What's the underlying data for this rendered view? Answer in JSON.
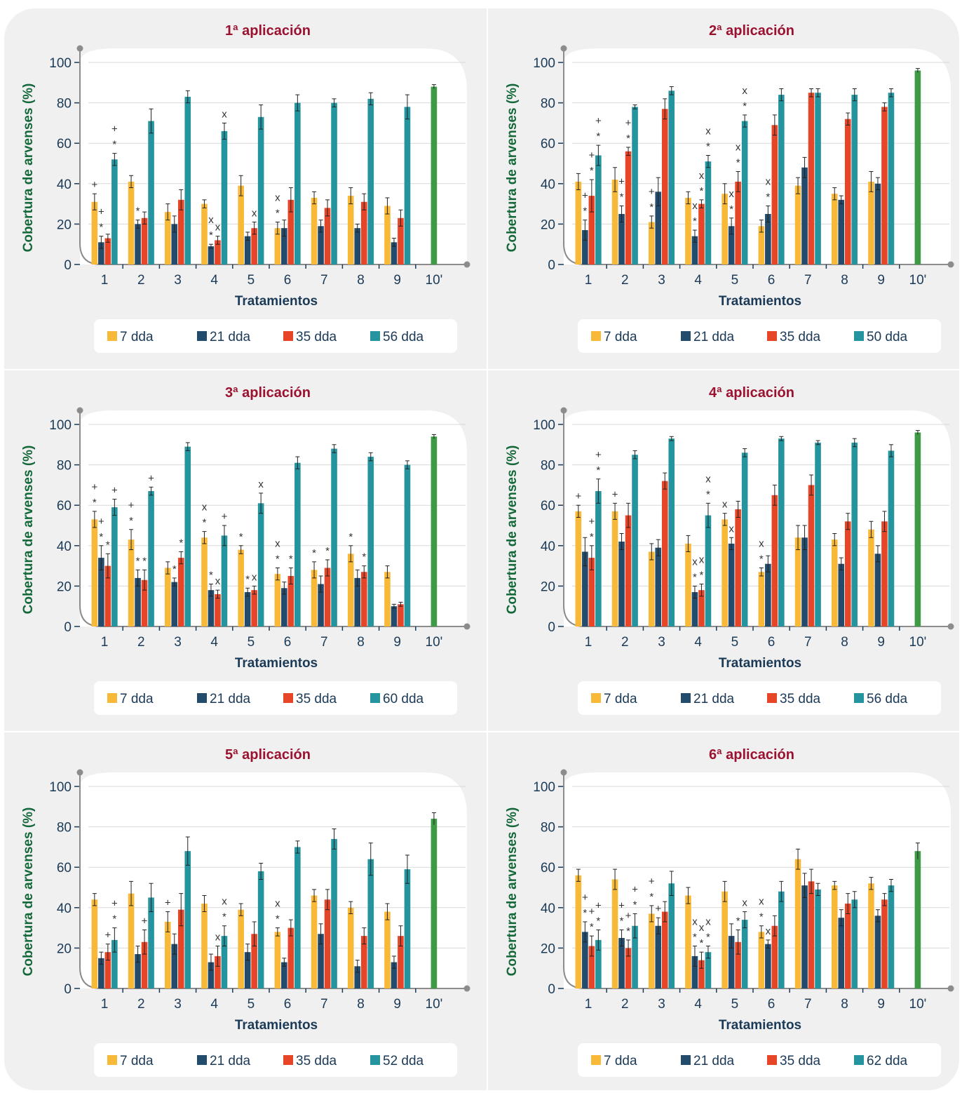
{
  "y_axis_label": "Cobertura de arvenses (%)",
  "x_axis_label": "Tratamientos",
  "colors": {
    "7 dda": "#f9b938",
    "21 dda": "#234b6c",
    "35 dda": "#e64528",
    "late": "#24959f",
    "control": "#3e9a45",
    "title": "#9b1230",
    "axis_label": "#14683a"
  },
  "chart_data": [
    {
      "type": "bar",
      "title": "1ª aplicación",
      "xlabel": "Tratamientos",
      "ylabel": "Cobertura de arvenses (%)",
      "ylim": [
        0,
        100
      ],
      "yticks": [
        0,
        20,
        40,
        60,
        80,
        100
      ],
      "categories": [
        "1",
        "2",
        "3",
        "4",
        "5",
        "6",
        "7",
        "8",
        "9",
        "10'"
      ],
      "legend_position": "bottom",
      "series": [
        {
          "name": "7 dda",
          "values": [
            31,
            41,
            26,
            30,
            39,
            18,
            33,
            34,
            29,
            null
          ],
          "errors": [
            4,
            3,
            4,
            2,
            5,
            3,
            3,
            4,
            4,
            null
          ],
          "marks": [
            "+",
            "",
            "",
            "",
            "",
            "x *",
            "",
            "",
            "",
            ""
          ]
        },
        {
          "name": "21 dda",
          "values": [
            11,
            20,
            20,
            9,
            14,
            18,
            19,
            18,
            11,
            null
          ],
          "errors": [
            3,
            2,
            4,
            1,
            2,
            4,
            3,
            2,
            2,
            null
          ],
          "marks": [
            "+ *",
            "*",
            "",
            "x *",
            "",
            "",
            "",
            "",
            "",
            ""
          ]
        },
        {
          "name": "35 dda",
          "values": [
            13,
            23,
            32,
            12,
            18,
            32,
            28,
            31,
            23,
            null
          ],
          "errors": [
            2,
            3,
            5,
            2,
            3,
            6,
            4,
            4,
            4,
            null
          ],
          "marks": [
            "",
            "",
            "",
            "x",
            "x",
            "",
            "",
            "",
            "",
            ""
          ]
        },
        {
          "name": "56 dda",
          "values": [
            52,
            71,
            83,
            66,
            73,
            80,
            80,
            82,
            78,
            null
          ],
          "errors": [
            3,
            6,
            3,
            4,
            6,
            4,
            2,
            3,
            6,
            null
          ],
          "marks": [
            "+ *",
            "",
            "",
            "x",
            "",
            "",
            "",
            "",
            "",
            ""
          ]
        }
      ],
      "control": {
        "category": "10'",
        "value": 88,
        "error": 1
      }
    },
    {
      "type": "bar",
      "title": "2ª aplicación",
      "xlabel": "Tratamientos",
      "ylabel": "Cobertura de arvenses (%)",
      "ylim": [
        0,
        100
      ],
      "yticks": [
        0,
        20,
        40,
        60,
        80,
        100
      ],
      "categories": [
        "1",
        "2",
        "3",
        "4",
        "5",
        "6",
        "7",
        "8",
        "9",
        "10'"
      ],
      "legend_position": "bottom",
      "series": [
        {
          "name": "7 dda",
          "values": [
            41,
            42,
            21,
            33,
            35,
            19,
            39,
            35,
            41,
            null
          ],
          "errors": [
            4,
            6,
            3,
            3,
            5,
            3,
            4,
            3,
            5,
            null
          ],
          "marks": [
            "",
            "",
            "+ *",
            "",
            "",
            "",
            "",
            "",
            "",
            ""
          ]
        },
        {
          "name": "21 dda",
          "values": [
            17,
            25,
            36,
            14,
            19,
            25,
            48,
            32,
            40,
            null
          ],
          "errors": [
            5,
            4,
            7,
            3,
            4,
            4,
            5,
            2,
            3,
            null
          ],
          "marks": [
            "+ *",
            "+ *",
            "",
            "x *",
            "x *",
            "x *",
            "",
            "",
            "",
            ""
          ]
        },
        {
          "name": "35 dda",
          "values": [
            34,
            56,
            77,
            30,
            41,
            69,
            85,
            72,
            78,
            null
          ],
          "errors": [
            8,
            2,
            5,
            2,
            5,
            5,
            2,
            3,
            2,
            null
          ],
          "marks": [
            "+ *",
            "+ *",
            "",
            "x *",
            "x *",
            "",
            "",
            "",
            "",
            ""
          ]
        },
        {
          "name": "50 dda",
          "values": [
            54,
            78,
            86,
            51,
            71,
            84,
            85,
            84,
            85,
            null
          ],
          "errors": [
            5,
            1,
            2,
            3,
            3,
            3,
            2,
            3,
            2,
            null
          ],
          "marks": [
            "+ *",
            "",
            "",
            "x *",
            "x *",
            "",
            "",
            "",
            "",
            ""
          ]
        }
      ],
      "control": {
        "category": "10'",
        "value": 96,
        "error": 1
      }
    },
    {
      "type": "bar",
      "title": "3ª aplicación",
      "xlabel": "Tratamientos",
      "ylabel": "Cobertura de arvenses (%)",
      "ylim": [
        0,
        100
      ],
      "yticks": [
        0,
        20,
        40,
        60,
        80,
        100
      ],
      "categories": [
        "1",
        "2",
        "3",
        "4",
        "5",
        "6",
        "7",
        "8",
        "9",
        "10'"
      ],
      "legend_position": "bottom",
      "series": [
        {
          "name": "7 dda",
          "values": [
            53,
            43,
            29,
            44,
            38,
            26,
            28,
            36,
            27,
            null
          ],
          "errors": [
            4,
            5,
            3,
            3,
            2,
            3,
            4,
            4,
            3,
            null
          ],
          "marks": [
            "+ *",
            "+ *",
            "",
            "x *",
            "*",
            "x *",
            "*",
            "*",
            "",
            ""
          ]
        },
        {
          "name": "21 dda",
          "values": [
            34,
            24,
            22,
            18,
            17,
            19,
            21,
            24,
            10,
            null
          ],
          "errors": [
            6,
            4,
            2,
            3,
            2,
            3,
            4,
            4,
            1,
            null
          ],
          "marks": [
            "+ *",
            "*",
            "*",
            "*",
            "*",
            "",
            "",
            "",
            "",
            ""
          ]
        },
        {
          "name": "35 dda",
          "values": [
            30,
            23,
            34,
            16,
            18,
            25,
            29,
            27,
            11,
            null
          ],
          "errors": [
            6,
            5,
            3,
            2,
            2,
            4,
            4,
            3,
            1,
            null
          ],
          "marks": [
            "*",
            "*",
            "*",
            "x",
            "x",
            "*",
            "*",
            "*",
            "",
            ""
          ]
        },
        {
          "name": "60 dda",
          "values": [
            59,
            67,
            89,
            45,
            61,
            81,
            88,
            84,
            80,
            null
          ],
          "errors": [
            4,
            2,
            2,
            5,
            5,
            3,
            2,
            2,
            2,
            null
          ],
          "marks": [
            "+",
            "+",
            "",
            "+",
            "x",
            "",
            "",
            "",
            "",
            ""
          ]
        }
      ],
      "control": {
        "category": "10'",
        "value": 94,
        "error": 1
      }
    },
    {
      "type": "bar",
      "title": "4ª aplicación",
      "xlabel": "Tratamientos",
      "ylabel": "Cobertura de arvenses (%)",
      "ylim": [
        0,
        100
      ],
      "yticks": [
        0,
        20,
        40,
        60,
        80,
        100
      ],
      "categories": [
        "1",
        "2",
        "3",
        "4",
        "5",
        "6",
        "7",
        "8",
        "9",
        "10'"
      ],
      "legend_position": "bottom",
      "series": [
        {
          "name": "7 dda",
          "values": [
            57,
            57,
            37,
            41,
            53,
            27,
            44,
            43,
            48,
            null
          ],
          "errors": [
            3,
            4,
            4,
            4,
            3,
            2,
            6,
            3,
            4,
            null
          ],
          "marks": [
            "+",
            "+",
            "",
            "",
            "x",
            "x *",
            "",
            "",
            "",
            ""
          ]
        },
        {
          "name": "21 dda",
          "values": [
            37,
            42,
            39,
            17,
            41,
            31,
            44,
            31,
            36,
            null
          ],
          "errors": [
            7,
            4,
            4,
            3,
            3,
            4,
            6,
            3,
            4,
            null
          ],
          "marks": [
            "",
            "",
            "",
            "x *",
            "x",
            "",
            "",
            "",
            "",
            ""
          ]
        },
        {
          "name": "35 dda",
          "values": [
            34,
            55,
            72,
            18,
            58,
            65,
            70,
            52,
            52,
            null
          ],
          "errors": [
            6,
            6,
            4,
            3,
            4,
            5,
            5,
            4,
            5,
            null
          ],
          "marks": [
            "+ *",
            "",
            "",
            "x *",
            "",
            "",
            "",
            "",
            "",
            ""
          ]
        },
        {
          "name": "56 dda",
          "values": [
            67,
            85,
            93,
            55,
            86,
            93,
            91,
            91,
            87,
            null
          ],
          "errors": [
            6,
            2,
            1,
            6,
            2,
            1,
            1,
            2,
            3,
            null
          ],
          "marks": [
            "+ *",
            "",
            "",
            "x *",
            "",
            "",
            "",
            "",
            "",
            ""
          ]
        }
      ],
      "control": {
        "category": "10'",
        "value": 96,
        "error": 1
      }
    },
    {
      "type": "bar",
      "title": "5ª aplicación",
      "xlabel": "Tratamientos",
      "ylabel": "Cobertura de arvenses (%)",
      "ylim": [
        0,
        100
      ],
      "yticks": [
        0,
        20,
        40,
        60,
        80,
        100
      ],
      "categories": [
        "1",
        "2",
        "3",
        "4",
        "5",
        "6",
        "7",
        "8",
        "9",
        "10'"
      ],
      "legend_position": "bottom",
      "series": [
        {
          "name": "7 dda",
          "values": [
            44,
            47,
            33,
            42,
            39,
            28,
            46,
            40,
            38,
            null
          ],
          "errors": [
            3,
            6,
            5,
            4,
            3,
            2,
            3,
            3,
            4,
            null
          ],
          "marks": [
            "",
            "",
            "+",
            "",
            "",
            "x *",
            "",
            "",
            "",
            ""
          ]
        },
        {
          "name": "21 dda",
          "values": [
            15,
            17,
            22,
            13,
            18,
            13,
            27,
            11,
            13,
            null
          ],
          "errors": [
            3,
            4,
            5,
            4,
            4,
            2,
            5,
            3,
            3,
            null
          ],
          "marks": [
            "",
            "",
            "",
            "",
            "",
            "",
            "",
            "",
            "",
            ""
          ]
        },
        {
          "name": "35 dda",
          "values": [
            18,
            23,
            39,
            16,
            27,
            30,
            44,
            26,
            26,
            null
          ],
          "errors": [
            4,
            6,
            8,
            5,
            6,
            4,
            5,
            4,
            5,
            null
          ],
          "marks": [
            "+",
            "+",
            "",
            "x",
            "",
            "",
            "",
            "",
            "",
            ""
          ]
        },
        {
          "name": "52 dda",
          "values": [
            24,
            45,
            68,
            26,
            58,
            70,
            74,
            64,
            59,
            null
          ],
          "errors": [
            6,
            7,
            7,
            5,
            4,
            3,
            5,
            8,
            7,
            null
          ],
          "marks": [
            "+ *",
            "",
            "",
            "x *",
            "",
            "",
            "",
            "",
            "",
            ""
          ]
        }
      ],
      "control": {
        "category": "10'",
        "value": 84,
        "error": 3
      }
    },
    {
      "type": "bar",
      "title": "6ª aplicación",
      "xlabel": "Tratamientos",
      "ylabel": "Cobertura de arvenses (%)",
      "ylim": [
        0,
        100
      ],
      "yticks": [
        0,
        20,
        40,
        60,
        80,
        100
      ],
      "categories": [
        "1",
        "2",
        "3",
        "4",
        "5",
        "6",
        "7",
        "8",
        "9",
        "10'"
      ],
      "legend_position": "bottom",
      "series": [
        {
          "name": "7 dda",
          "values": [
            56,
            54,
            37,
            46,
            48,
            28,
            64,
            51,
            52,
            null
          ],
          "errors": [
            3,
            5,
            4,
            4,
            5,
            3,
            5,
            2,
            3,
            null
          ],
          "marks": [
            "",
            "",
            "+ *",
            "",
            "",
            "x *",
            "",
            "",
            "",
            ""
          ]
        },
        {
          "name": "21 dda",
          "values": [
            28,
            25,
            31,
            16,
            26,
            22,
            51,
            35,
            36,
            null
          ],
          "errors": [
            5,
            4,
            4,
            5,
            6,
            2,
            6,
            4,
            3,
            null
          ],
          "marks": [
            "+ *",
            "+ *",
            "+",
            "x *",
            "",
            "x",
            "",
            "",
            "",
            ""
          ]
        },
        {
          "name": "35 dda",
          "values": [
            21,
            20,
            38,
            14,
            23,
            31,
            53,
            42,
            44,
            null
          ],
          "errors": [
            5,
            4,
            5,
            4,
            6,
            5,
            6,
            5,
            3,
            null
          ],
          "marks": [
            "+ *",
            "+ *",
            "",
            "x *",
            "*",
            "",
            "",
            "",
            "",
            ""
          ]
        },
        {
          "name": "62 dda",
          "values": [
            24,
            31,
            52,
            18,
            34,
            48,
            49,
            44,
            51,
            null
          ],
          "errors": [
            5,
            6,
            6,
            3,
            4,
            5,
            3,
            4,
            3,
            null
          ],
          "marks": [
            "+ *",
            "+ *",
            "",
            "x *",
            "x",
            "",
            "",
            "",
            "",
            ""
          ]
        }
      ],
      "control": {
        "category": "10'",
        "value": 68,
        "error": 4
      }
    }
  ]
}
